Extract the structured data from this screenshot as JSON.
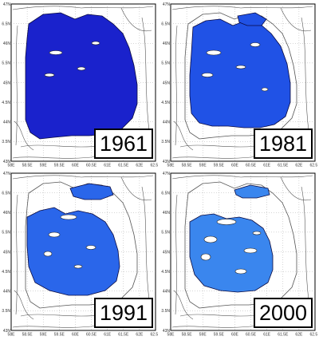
{
  "colors": {
    "sea_1961": "#1a22cc",
    "sea_1981": "#2052e6",
    "sea_1991": "#2a66ea",
    "sea_2000": "#3a86ee",
    "frame": "#000000",
    "contour": "#555555",
    "grid": "#999999"
  },
  "axes": {
    "x_ticks": [
      "58E",
      "58.5E",
      "59E",
      "59.5E",
      "60E",
      "60.5E",
      "61E",
      "61.5E",
      "62E",
      "62.5E"
    ],
    "y_ticks": [
      "47N",
      "46.5N",
      "46N",
      "45.5N",
      "45N",
      "44.5N",
      "44N",
      "43.5N",
      "43N"
    ]
  },
  "panels": [
    {
      "year": "1961",
      "sea_color_key": "sea_1961"
    },
    {
      "year": "1981",
      "sea_color_key": "sea_1981"
    },
    {
      "year": "1991",
      "sea_color_key": "sea_1991"
    },
    {
      "year": "2000",
      "sea_color_key": "sea_2000"
    }
  ]
}
